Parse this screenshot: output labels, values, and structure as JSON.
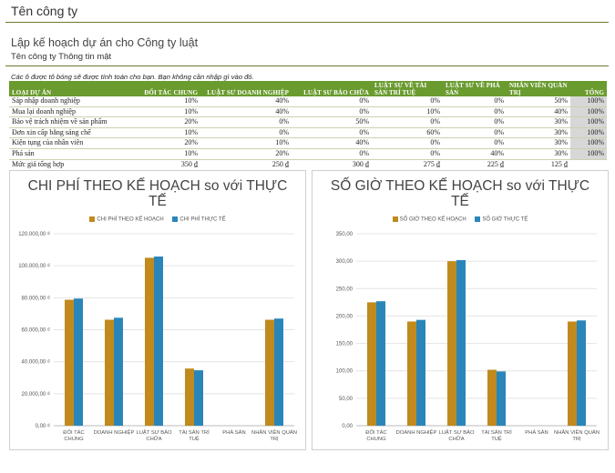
{
  "header": {
    "company": "Tên công ty",
    "plan_title": "Lập kế hoạch dự án cho Công ty luật",
    "confidential": "Tên công ty Thông tin mật",
    "note": "Các ô được tô bóng sẽ được tính toán cho bạn. Bạn không cần nhập gì vào đó."
  },
  "table": {
    "columns": [
      "LOẠI DỰ ÁN",
      "ĐỐI TÁC CHUNG",
      "LUẬT SƯ DOANH NGHIỆP",
      "LUẬT SƯ BẢO CHỮA",
      "LUẬT SƯ VỀ TÀI SẢN TRÍ TUỆ",
      "LUẬT SƯ VỀ PHÁ SẢN",
      "NHÂN VIÊN QUẢN TRỊ",
      "TỔNG"
    ],
    "rows": [
      [
        "Sáp nhập doanh nghiệp",
        "10%",
        "40%",
        "0%",
        "0%",
        "0%",
        "50%",
        "100%"
      ],
      [
        "Mua lại doanh nghiệp",
        "10%",
        "40%",
        "0%",
        "10%",
        "0%",
        "40%",
        "100%"
      ],
      [
        "Bảo vệ trách nhiệm về sản phẩm",
        "20%",
        "0%",
        "50%",
        "0%",
        "0%",
        "30%",
        "100%"
      ],
      [
        "Đơn xin cấp bằng sáng chế",
        "10%",
        "0%",
        "0%",
        "60%",
        "0%",
        "30%",
        "100%"
      ],
      [
        "Kiện tụng của nhân viên",
        "20%",
        "10%",
        "40%",
        "0%",
        "0%",
        "30%",
        "100%"
      ],
      [
        "Phá sản",
        "10%",
        "20%",
        "0%",
        "0%",
        "40%",
        "30%",
        "100%"
      ]
    ],
    "rate_row": [
      "Mức giá tổng hợp",
      "350 ₫",
      "250 ₫",
      "300 ₫",
      "275 ₫",
      "225 ₫",
      "125 ₫",
      ""
    ]
  },
  "colors": {
    "planned": "#c08a1e",
    "actual": "#2a86b9",
    "header_green": "#6a9b2f"
  },
  "chart_data": [
    {
      "type": "bar",
      "title": "CHI PHÍ THEO KẾ HOẠCH so với THỰC TẾ",
      "categories": [
        "ĐỐI TÁC CHUNG",
        "DOANH NGHIỆP",
        "LUẬT SƯ BẢO CHỮA",
        "TÀI SẢN TRÍ TUỆ",
        "PHÁ SẢN",
        "NHÂN VIÊN QUẢN TRỊ"
      ],
      "series": [
        {
          "name": "CHI PHÍ THEO KẾ HOẠCH",
          "values": [
            78750,
            66250,
            105000,
            35750,
            0,
            66250
          ]
        },
        {
          "name": "CHI PHÍ THỰC TẾ",
          "values": [
            79500,
            67500,
            105750,
            34650,
            0,
            67000
          ]
        }
      ],
      "ylim": [
        0,
        120000
      ],
      "yticks": [
        "0,00 ₫",
        "20.000,00 ₫",
        "40.000,00 ₫",
        "60.000,00 ₫",
        "80.000,00 ₫",
        "100.000,00 ₫",
        "120.000,00 ₫"
      ],
      "grid": true,
      "legend": "top"
    },
    {
      "type": "bar",
      "title": "SỐ GIỜ THEO KẾ HOẠCH so với THỰC TẾ",
      "categories": [
        "ĐỐI TÁC CHUNG",
        "DOANH NGHIỆP",
        "LUẬT SƯ BẢO CHỮA",
        "TÀI SẢN TRÍ TUỆ",
        "PHÁ SẢN",
        "NHÂN VIÊN QUẢN TRỊ"
      ],
      "series": [
        {
          "name": "SỐ GIỜ THEO KẾ HOẠCH",
          "values": [
            225,
            190,
            300,
            102,
            0,
            190
          ]
        },
        {
          "name": "SỐ GIỜ THỰC TẾ",
          "values": [
            227,
            193,
            302,
            99,
            0,
            192
          ]
        }
      ],
      "ylim": [
        0,
        350
      ],
      "yticks": [
        "0,00",
        "50,00",
        "100,00",
        "150,00",
        "200,00",
        "250,00",
        "300,00",
        "350,00"
      ],
      "grid": true,
      "legend": "top"
    }
  ]
}
